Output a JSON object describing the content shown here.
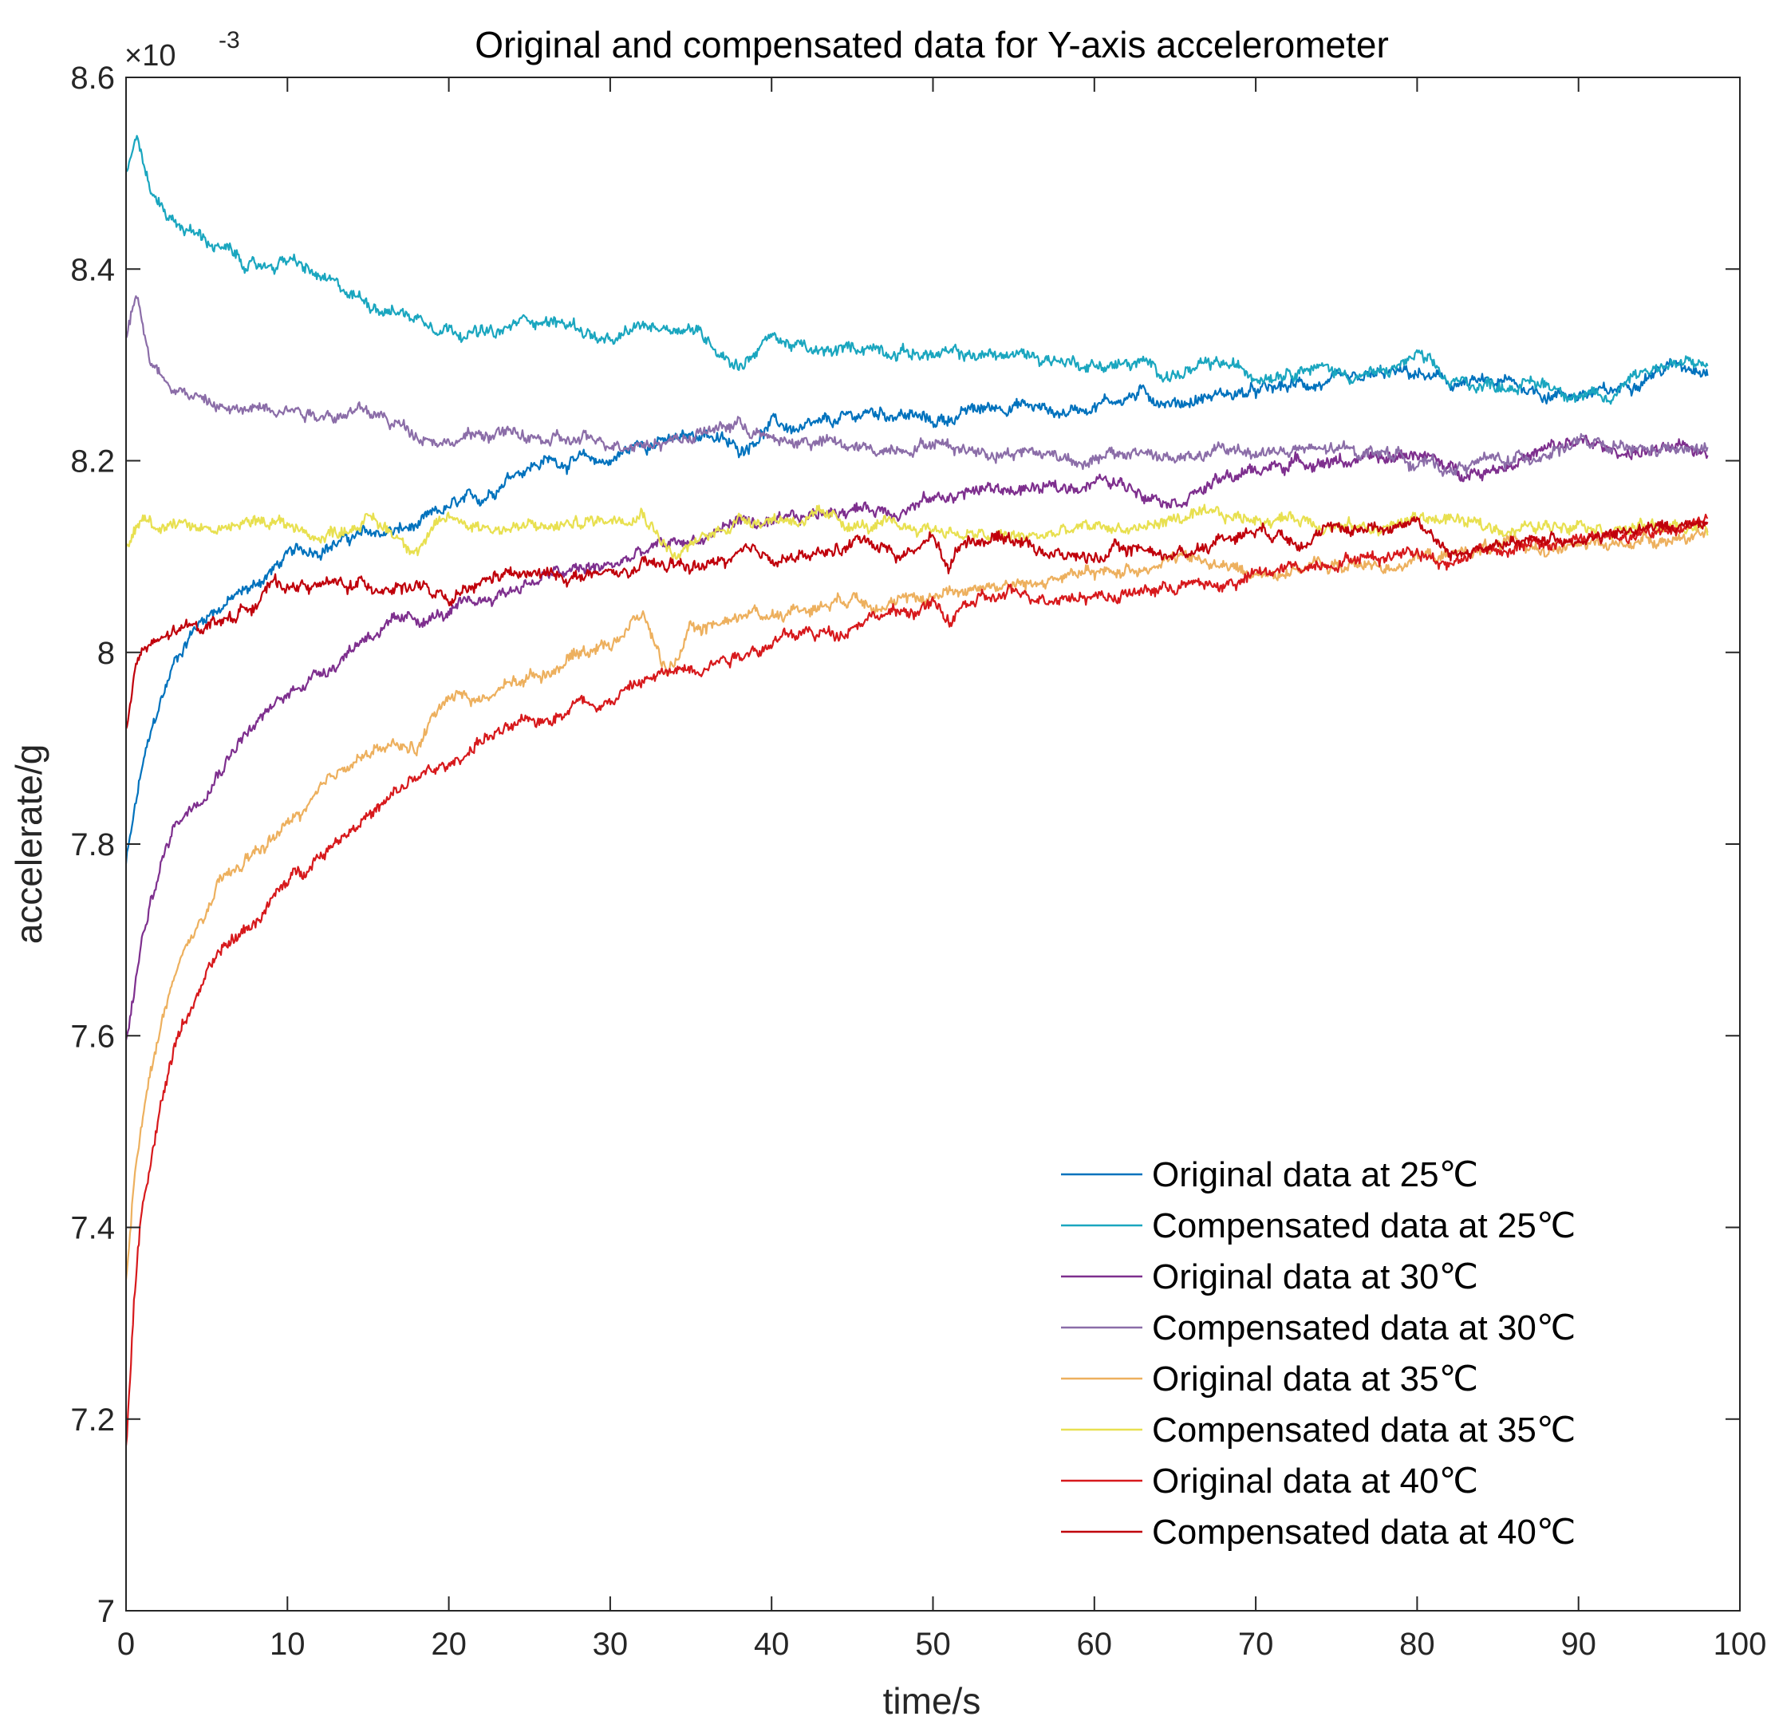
{
  "chart_data": {
    "type": "line",
    "title": "Original and compensated data for Y-axis accelerometer",
    "xlabel": "time/s",
    "ylabel": "accelerate/g",
    "exponent_prefix": "×10",
    "exponent_power": "-3",
    "xlim": [
      0,
      100
    ],
    "ylim": [
      7.0,
      8.6
    ],
    "xticks": [
      0,
      10,
      20,
      30,
      40,
      50,
      60,
      70,
      80,
      90,
      100
    ],
    "xtick_labels": [
      "0",
      "10",
      "20",
      "30",
      "40",
      "50",
      "60",
      "70",
      "80",
      "90",
      "100"
    ],
    "yticks": [
      7.0,
      7.2,
      7.4,
      7.6,
      7.8,
      8.0,
      8.2,
      8.4,
      8.6
    ],
    "ytick_labels": [
      "7",
      "7.2",
      "7.4",
      "7.6",
      "7.8",
      "8",
      "8.2",
      "8.4",
      "8.6"
    ],
    "legend_position": "bottom-right",
    "grid": false,
    "series": [
      {
        "name": "Original data at 25℃",
        "color": "#0072BD",
        "x": [
          0,
          1,
          2,
          3,
          4,
          5,
          6,
          8,
          10,
          14,
          18,
          20,
          22,
          24,
          26,
          28,
          30,
          32,
          34,
          36,
          38,
          40,
          42,
          44,
          46,
          48,
          50,
          52,
          55,
          58,
          60,
          63,
          65,
          68,
          70,
          73,
          76,
          78,
          80,
          82,
          84,
          86,
          88,
          90,
          92,
          94,
          96,
          98
        ],
        "y": [
          7.78,
          7.88,
          7.94,
          7.99,
          8.02,
          8.04,
          8.05,
          8.07,
          8.1,
          8.12,
          8.13,
          8.15,
          8.16,
          8.19,
          8.2,
          8.2,
          8.2,
          8.22,
          8.22,
          8.23,
          8.21,
          8.24,
          8.23,
          8.24,
          8.25,
          8.25,
          8.24,
          8.25,
          8.26,
          8.25,
          8.26,
          8.27,
          8.26,
          8.27,
          8.27,
          8.28,
          8.28,
          8.29,
          8.29,
          8.28,
          8.28,
          8.28,
          8.27,
          8.27,
          8.27,
          8.29,
          8.3,
          8.3
        ]
      },
      {
        "name": "Compensated data at 25℃",
        "color": "#1AA6BF",
        "x": [
          0,
          0.7,
          1.5,
          3,
          5,
          8,
          10,
          13,
          16,
          20,
          23,
          25,
          28,
          30,
          32,
          35,
          38,
          40,
          43,
          46,
          50,
          53,
          56,
          60,
          63,
          65,
          68,
          70,
          73,
          76,
          78,
          80,
          82,
          84,
          86,
          88,
          90,
          92,
          93,
          95,
          97,
          98
        ],
        "y": [
          8.5,
          8.54,
          8.48,
          8.45,
          8.43,
          8.4,
          8.41,
          8.38,
          8.36,
          8.34,
          8.33,
          8.35,
          8.34,
          8.32,
          8.34,
          8.34,
          8.3,
          8.33,
          8.31,
          8.32,
          8.31,
          8.31,
          8.31,
          8.3,
          8.3,
          8.29,
          8.3,
          8.29,
          8.3,
          8.29,
          8.29,
          8.31,
          8.28,
          8.28,
          8.28,
          8.28,
          8.27,
          8.26,
          8.29,
          8.3,
          8.3,
          8.3
        ]
      },
      {
        "name": "Original data at 30℃",
        "color": "#7E2F8E",
        "x": [
          0,
          1,
          2,
          3,
          5,
          7,
          9,
          11,
          13,
          15,
          17,
          20,
          23,
          26,
          30,
          33,
          36,
          38,
          40,
          42,
          44,
          46,
          48,
          50,
          53,
          56,
          58,
          60,
          63,
          65,
          68,
          70,
          73,
          76,
          78,
          80,
          82,
          84,
          86,
          88,
          90,
          92,
          94,
          96,
          98
        ],
        "y": [
          7.59,
          7.7,
          7.77,
          7.82,
          7.86,
          7.91,
          7.94,
          7.97,
          7.99,
          8.02,
          8.03,
          8.04,
          8.06,
          8.08,
          8.09,
          8.11,
          8.12,
          8.14,
          8.13,
          8.14,
          8.15,
          8.15,
          8.15,
          8.16,
          8.17,
          8.17,
          8.17,
          8.18,
          8.17,
          8.16,
          8.18,
          8.19,
          8.2,
          8.2,
          8.2,
          8.21,
          8.19,
          8.19,
          8.2,
          8.21,
          8.22,
          8.21,
          8.21,
          8.21,
          8.21
        ]
      },
      {
        "name": "Compensated data at 30℃",
        "color": "#8B6DA8",
        "x": [
          0,
          0.7,
          1.5,
          3,
          5,
          7,
          9,
          12,
          15,
          18,
          20,
          23,
          26,
          30,
          33,
          36,
          38,
          40,
          43,
          46,
          50,
          53,
          56,
          60,
          63,
          65,
          68,
          70,
          73,
          76,
          78,
          80,
          82,
          84,
          86,
          88,
          90,
          92,
          94,
          96,
          98
        ],
        "y": [
          8.33,
          8.38,
          8.3,
          8.28,
          8.26,
          8.25,
          8.26,
          8.25,
          8.25,
          8.23,
          8.22,
          8.23,
          8.22,
          8.22,
          8.22,
          8.23,
          8.24,
          8.22,
          8.22,
          8.21,
          8.22,
          8.21,
          8.21,
          8.2,
          8.21,
          8.2,
          8.21,
          8.21,
          8.21,
          8.21,
          8.21,
          8.2,
          8.19,
          8.2,
          8.2,
          8.21,
          8.22,
          8.21,
          8.21,
          8.21,
          8.21
        ]
      },
      {
        "name": "Original data at 35℃",
        "color": "#EDB05E",
        "x": [
          0,
          0.5,
          1,
          2,
          3,
          4,
          5,
          6,
          8,
          10,
          12,
          14,
          16,
          18,
          20,
          22,
          24,
          26,
          28,
          30,
          32,
          33.5,
          35,
          38,
          40,
          43,
          45,
          48,
          50,
          53,
          56,
          58,
          60,
          63,
          65,
          68,
          70,
          73,
          76,
          78,
          80,
          82,
          84,
          86,
          88,
          90,
          92,
          94,
          96,
          98
        ],
        "y": [
          7.34,
          7.45,
          7.52,
          7.6,
          7.66,
          7.7,
          7.73,
          7.76,
          7.79,
          7.82,
          7.85,
          7.89,
          7.9,
          7.9,
          7.96,
          7.95,
          7.97,
          7.98,
          8.0,
          8.01,
          8.04,
          7.98,
          8.02,
          8.04,
          8.04,
          8.05,
          8.06,
          8.05,
          8.06,
          8.07,
          8.07,
          8.08,
          8.08,
          8.09,
          8.1,
          8.09,
          8.08,
          8.09,
          8.09,
          8.09,
          8.1,
          8.1,
          8.11,
          8.11,
          8.11,
          8.11,
          8.11,
          8.12,
          8.12,
          8.12
        ]
      },
      {
        "name": "Compensated data at 35℃",
        "color": "#E8E050",
        "x": [
          0,
          1,
          2,
          3,
          5,
          7,
          9,
          12,
          15,
          18,
          20,
          23,
          26,
          30,
          32,
          34,
          36,
          38,
          40,
          43,
          46,
          50,
          53,
          56,
          60,
          63,
          65,
          68,
          70,
          73,
          76,
          78,
          80,
          82,
          84,
          86,
          88,
          90,
          92,
          94,
          96,
          98
        ],
        "y": [
          8.11,
          8.14,
          8.13,
          8.14,
          8.13,
          8.13,
          8.14,
          8.12,
          8.14,
          8.11,
          8.14,
          8.13,
          8.13,
          8.14,
          8.15,
          8.1,
          8.12,
          8.14,
          8.14,
          8.14,
          8.13,
          8.13,
          8.12,
          8.12,
          8.13,
          8.13,
          8.14,
          8.14,
          8.14,
          8.14,
          8.13,
          8.13,
          8.14,
          8.14,
          8.13,
          8.13,
          8.13,
          8.14,
          8.13,
          8.13,
          8.13,
          8.13
        ]
      },
      {
        "name": "Original data at 40℃",
        "color": "#D7191C",
        "x": [
          0,
          0.5,
          1,
          2,
          3,
          4,
          5,
          6,
          8,
          10,
          12,
          14,
          16,
          18,
          20,
          22,
          24,
          26,
          28,
          30,
          32,
          34,
          36,
          38,
          40,
          42,
          44,
          46,
          48,
          50,
          51,
          52,
          55,
          58,
          60,
          62,
          65,
          68,
          70,
          73,
          76,
          78,
          80,
          82,
          84,
          86,
          88,
          90,
          92,
          94,
          96,
          98
        ],
        "y": [
          7.17,
          7.32,
          7.42,
          7.52,
          7.59,
          7.63,
          7.66,
          7.69,
          7.72,
          7.76,
          7.79,
          7.82,
          7.84,
          7.87,
          7.88,
          7.91,
          7.92,
          7.93,
          7.95,
          7.95,
          7.97,
          7.98,
          7.99,
          8.0,
          8.01,
          8.02,
          8.02,
          8.04,
          8.04,
          8.05,
          8.03,
          8.05,
          8.06,
          8.06,
          8.06,
          8.06,
          8.07,
          8.07,
          8.08,
          8.09,
          8.1,
          8.1,
          8.11,
          8.09,
          8.11,
          8.11,
          8.11,
          8.12,
          8.12,
          8.12,
          8.13,
          8.14
        ]
      },
      {
        "name": "Compensated data at 40℃",
        "color": "#C0000B",
        "x": [
          0,
          0.5,
          1,
          2,
          3,
          5,
          7,
          9,
          12,
          15,
          18,
          20,
          23,
          26,
          30,
          33,
          36,
          38,
          40,
          43,
          46,
          48,
          50,
          51,
          52,
          55,
          58,
          60,
          63,
          65,
          68,
          70,
          73,
          76,
          78,
          80,
          82,
          84,
          86,
          88,
          90,
          92,
          94,
          96,
          98
        ],
        "y": [
          7.92,
          7.98,
          8.0,
          8.01,
          8.02,
          8.03,
          8.04,
          8.07,
          8.07,
          8.07,
          8.07,
          8.05,
          8.08,
          8.08,
          8.08,
          8.09,
          8.09,
          8.1,
          8.1,
          8.1,
          8.12,
          8.1,
          8.12,
          8.09,
          8.12,
          8.12,
          8.1,
          8.1,
          8.11,
          8.1,
          8.12,
          8.13,
          8.12,
          8.13,
          8.13,
          8.14,
          8.1,
          8.11,
          8.11,
          8.12,
          8.12,
          8.12,
          8.13,
          8.13,
          8.14
        ]
      }
    ]
  }
}
